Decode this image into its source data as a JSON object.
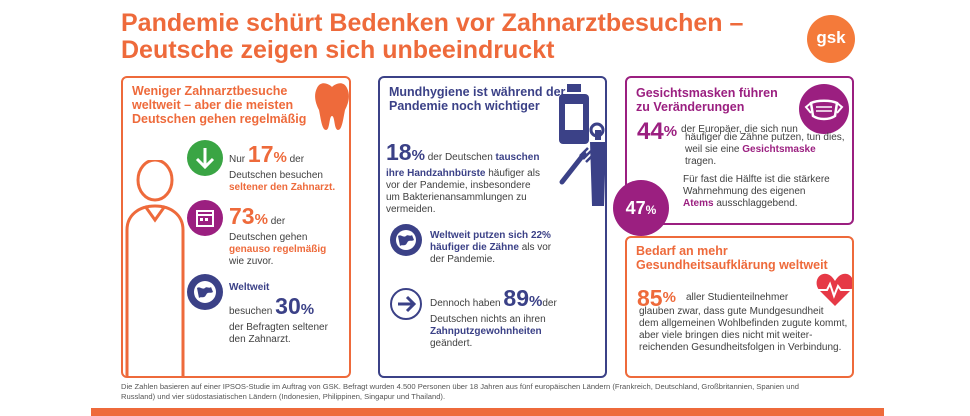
{
  "title": {
    "line1": "Pandemie schürt Bedenken vor Zahnarztbesuchen –",
    "line2": "Deutsche zeigen sich unbeeindruckt"
  },
  "logo": "gsk",
  "panel1": {
    "heading_l1": "Weniger Zahnarztbesuche",
    "heading_l2": "weltweit – aber die meisten",
    "heading_l3": "Deutschen gehen regelmäßig",
    "stat1": {
      "pre": "Nur",
      "num": "17",
      "pct": "%",
      "post": "der",
      "l2": "Deutschen besuchen",
      "l3": "seltener den Zahnarzt."
    },
    "stat2": {
      "num": "73",
      "pct": "%",
      "post": "der",
      "l2": "Deutschen gehen",
      "l3": "genauso regelmäßig",
      "l4": "wie zuvor."
    },
    "stat3": {
      "l1": "Weltweit",
      "l2": "besuchen",
      "num": "30",
      "pct": "%",
      "l3": "der Befragten seltener",
      "l4": "den Zahnarzt."
    }
  },
  "panel2": {
    "heading_l1": "Mundhygiene ist während der",
    "heading_l2": "Pandemie noch wichtiger",
    "stat1": {
      "num": "18",
      "pct": "%",
      "post_a": "der Deutschen",
      "post_b": "tauschen",
      "l2a": "ihre Handzahnbürste",
      "l2b": "häufiger als",
      "l3": "vor der Pandemie, insbesondere",
      "l4": "um Bakterienansammlungen zu",
      "l5": "vermeiden."
    },
    "stat2": {
      "l1": "Weltweit putzen sich 22%",
      "l2a": "häufiger die Zähne",
      "l2b": "als vor",
      "l3": "der Pandemie."
    },
    "stat3": {
      "pre": "Dennoch haben",
      "num": "89",
      "pct": "%",
      "post": "der",
      "l2": "Deutschen nichts an ihren",
      "l3": "Zahnputzgewohnheiten",
      "l4": "geändert."
    }
  },
  "panel3": {
    "heading_l1": "Gesichtsmasken führen",
    "heading_l2": "zu Veränderungen",
    "stat1": {
      "num": "44",
      "pct": "%",
      "l1": "der Europäer, die sich nun",
      "l2": "häufiger die Zähne putzen, tun dies,",
      "l3a": "weil sie eine",
      "l3b": "Gesichtsmaske",
      "l3c": "tragen."
    },
    "stat2": {
      "num": "47",
      "pct": "%",
      "l1": "Für fast die Hälfte ist die stärkere",
      "l2": "Wahrnehmung des eigenen",
      "l3a": "Atems",
      "l3b": "ausschlaggebend."
    }
  },
  "panel4": {
    "heading_l1": "Bedarf an mehr",
    "heading_l2": "Gesundheitsaufklärung weltweit",
    "stat1": {
      "num": "85",
      "pct": "%",
      "l1": "aller Studienteilnehmer",
      "l2": "glauben zwar, dass gute Mundgesundheit",
      "l3": "dem allgemeinen Wohlbefinden zugute kommt,",
      "l4": "aber viele bringen dies nicht mit weiter-",
      "l5": "reichenden Gesundheitsfolgen in Verbindung."
    }
  },
  "footnote": {
    "l1": "Die Zahlen basieren auf einer IPSOS-Studie im Auftrag von GSK. Befragt wurden 4.500 Personen über 18 Jahren aus fünf europäischen Ländern (Frankreich, Deutschland, Großbritannien, Spanien und",
    "l2": "Russland) und vier südostasiatischen Ländern (Indonesien, Philippinen, Singapur und Thailand)."
  },
  "icons": [
    "tooth-icon",
    "person-icon",
    "arrow-down-icon",
    "calendar-icon",
    "globe-icon",
    "mouthwash-icon",
    "toothbrush-icon",
    "toothpaste-icon",
    "arrow-right-icon",
    "face-mask-icon",
    "heart-pulse-icon"
  ],
  "colors": {
    "orange": "#ee6a3b",
    "navy": "#3b4187",
    "purple": "#9b1f80",
    "green": "#3aa544",
    "red": "#e63946"
  }
}
